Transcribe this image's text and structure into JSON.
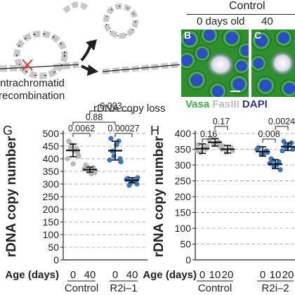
{
  "schematic": {
    "label_line1": "Intrachromatid",
    "label_line2": "recombination",
    "colors": {
      "segment": "#c8c8c8",
      "dna": "#231f20",
      "cross": "#e63329"
    }
  },
  "micrographs": {
    "title": "Control",
    "panels": [
      {
        "letter": "B",
        "age": "0 days old"
      },
      {
        "letter": "C",
        "age": "40 days"
      }
    ],
    "stain_legend": [
      {
        "text": "Vasa",
        "color": "#3fae49"
      },
      {
        "text": " FasIII",
        "color": "#bdbdbd"
      },
      {
        "text": " DAPI",
        "color": "#2e3192"
      }
    ]
  },
  "figure_title": "rDNA copy loss",
  "panels": [
    {
      "letter": "G",
      "ylabel": "rDNA copy number",
      "xlabel": "Age (days)",
      "yticks": [
        0,
        50,
        100,
        150,
        200,
        250,
        300,
        350,
        400,
        450,
        500
      ],
      "ylim": [
        0,
        500
      ],
      "groups": [
        {
          "name": "Control",
          "color": "#b7b7b7",
          "ages": [
            {
              "age": "0",
              "mean": 433,
              "sem": 25,
              "points": [
                468,
                440,
                455,
                420,
                400,
                430,
                445,
                410,
                380,
                470
              ]
            },
            {
              "age": "40",
              "mean": 357,
              "sem": 10,
              "points": [
                375,
                365,
                350,
                345,
                360,
                340,
                370,
                352
              ]
            }
          ]
        },
        {
          "name": "R2i–1",
          "color": "#3a77bf",
          "ages": [
            {
              "age": "0",
              "mean": 432,
              "sem": 37,
              "points": [
                480,
                470,
                410,
                400,
                395,
                455,
                430,
                388
              ]
            },
            {
              "age": "40",
              "mean": 315,
              "sem": 10,
              "points": [
                322,
                310,
                305,
                300,
                318,
                312,
                295,
                325
              ]
            }
          ]
        }
      ],
      "pvalues": [
        {
          "text": "0.0062",
          "from": 0,
          "to": 1,
          "level": 0
        },
        {
          "text": "0.00027",
          "from": 2,
          "to": 3,
          "level": 0
        },
        {
          "text": "0.88",
          "from": 0,
          "to": 2,
          "level": 1
        },
        {
          "text": "0.003",
          "from": 1,
          "to": 3,
          "level": 2
        }
      ]
    },
    {
      "letter": "H",
      "ylabel": "rDNA copy number",
      "xlabel": "Age (days)",
      "yticks": [
        0,
        50,
        100,
        150,
        200,
        250,
        300,
        350,
        400
      ],
      "ylim": [
        0,
        400
      ],
      "groups": [
        {
          "name": "Control",
          "color": "#b7b7b7",
          "ages": [
            {
              "age": "0",
              "mean": 352,
              "sem": 15,
              "points": [
                365,
                350,
                340,
                360,
                345,
                355
              ]
            },
            {
              "age": "10",
              "mean": 372,
              "sem": 12,
              "points": [
                385,
                375,
                365,
                360,
                380,
                370
              ]
            },
            {
              "age": "20",
              "mean": 350,
              "sem": 12,
              "points": [
                360,
                355,
                340,
                345,
                350
              ]
            }
          ]
        },
        {
          "name": "R2i–2",
          "color": "#3a77bf",
          "ages": [
            {
              "age": "0",
              "mean": 343,
              "sem": 15,
              "points": [
                355,
                345,
                335,
                340,
                350,
                338
              ]
            },
            {
              "age": "10",
              "mean": 303,
              "sem": 14,
              "points": [
                320,
                310,
                295,
                285,
                305,
                300,
                315
              ]
            },
            {
              "age": "20",
              "mean": 358,
              "sem": 12,
              "points": [
                375,
                370,
                355,
                350,
                345,
                365,
                360
              ]
            }
          ]
        }
      ],
      "pvalues": [
        {
          "text": "0.16",
          "from": 0,
          "to": 1,
          "level": 0
        },
        {
          "text": "0.008",
          "from": 3,
          "to": 4,
          "level": 0
        },
        {
          "text": "0.17",
          "from": 1,
          "to": 2,
          "level": 1
        },
        {
          "text": "0.0024",
          "from": 4,
          "to": 5,
          "level": 1
        }
      ]
    }
  ],
  "chart_data": [
    {
      "type": "scatter",
      "title": "",
      "panel": "G",
      "xlabel": "Age (days)",
      "ylabel": "rDNA copy number",
      "ylim": [
        0,
        500
      ],
      "categories": [
        "Control 0",
        "Control 40",
        "R2i–1 0",
        "R2i–1 40"
      ],
      "series": [
        {
          "name": "Control",
          "x": [
            0,
            40
          ],
          "mean": [
            433,
            357
          ]
        },
        {
          "name": "R2i–1",
          "x": [
            0,
            40
          ],
          "mean": [
            432,
            315
          ]
        }
      ]
    },
    {
      "type": "scatter",
      "title": "",
      "panel": "H",
      "xlabel": "Age (days)",
      "ylabel": "rDNA copy number",
      "ylim": [
        0,
        400
      ],
      "categories": [
        "Control 0",
        "Control 10",
        "Control 20",
        "R2i–2 0",
        "R2i–2 10",
        "R2i–2 20"
      ],
      "series": [
        {
          "name": "Control",
          "x": [
            0,
            10,
            20
          ],
          "mean": [
            352,
            372,
            350
          ]
        },
        {
          "name": "R2i–2",
          "x": [
            0,
            10,
            20
          ],
          "mean": [
            343,
            303,
            358
          ]
        }
      ]
    }
  ]
}
